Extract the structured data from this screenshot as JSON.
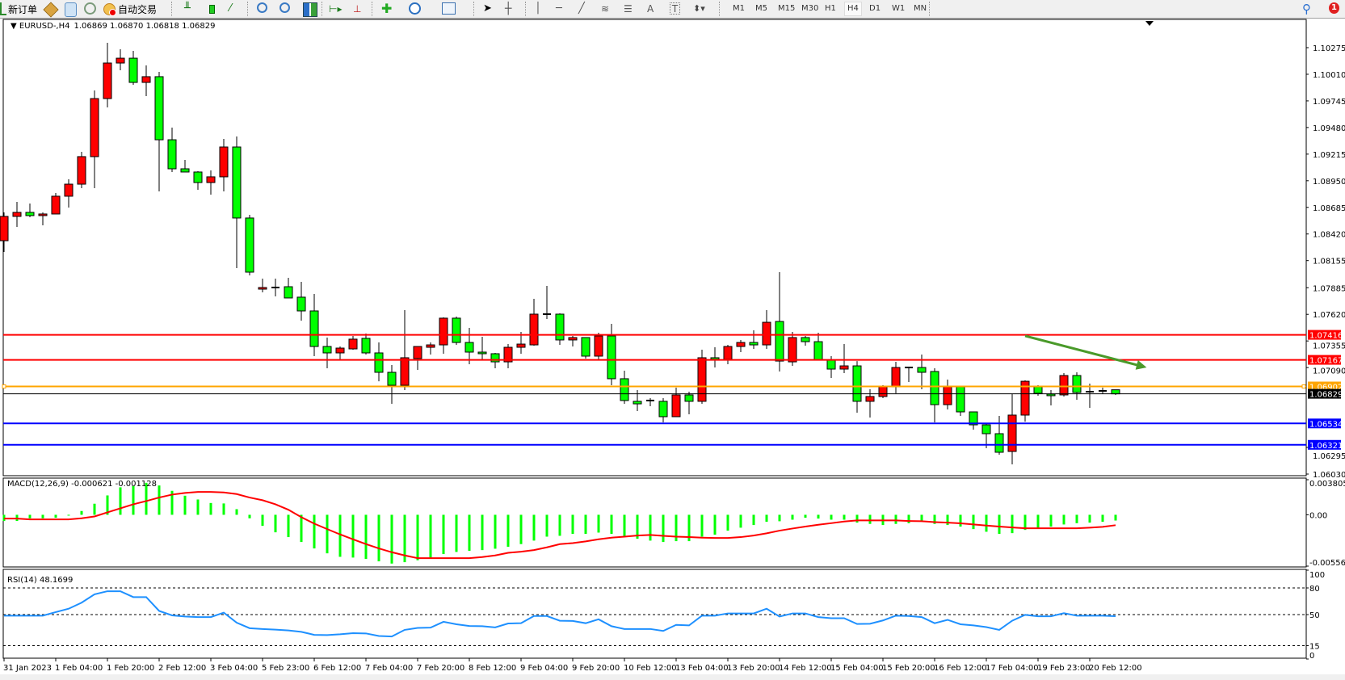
{
  "toolbar": {
    "new_order_label": "新订单",
    "auto_trading_label": "自动交易",
    "timeframes": [
      "M1",
      "M5",
      "M15",
      "M30",
      "H1",
      "H4",
      "D1",
      "W1",
      "MN"
    ],
    "active_timeframe": "H4",
    "icons": [
      "new-order-icon",
      "market-watch-icon",
      "navigator-icon",
      "signals-icon",
      "auto-trading-icon",
      "bar-chart-icon",
      "candlestick-icon",
      "line-chart-icon",
      "zoom-in-icon",
      "zoom-out-icon",
      "tile-windows-icon",
      "auto-scroll-icon",
      "chart-shift-icon",
      "indicators-icon",
      "periods-icon",
      "templates-icon",
      "cursor-icon",
      "crosshair-icon",
      "vertical-line-icon",
      "horizontal-line-icon",
      "trendline-icon",
      "fibonacci-icon",
      "fibo-fan-icon",
      "text-icon",
      "text-label-icon",
      "arrows-icon",
      "search-icon",
      "alerts-icon"
    ],
    "alert_badge": "1"
  },
  "chart": {
    "symbol_label": "EURUSD-,H4",
    "ohlc_label": "1.06869 1.06870 1.06818 1.06829",
    "colors": {
      "bull": "#ff0000",
      "bear": "#00ff00",
      "macd_hist": "#00ff00",
      "macd_signal": "#ff0000",
      "rsi": "#1e90ff",
      "arrow": "#4a9a2a"
    },
    "price_ticks": [
      "1.10275",
      "1.10010",
      "1.09745",
      "1.09480",
      "1.09215",
      "1.08950",
      "1.08685",
      "1.08420",
      "1.08155",
      "1.07885",
      "1.07620",
      "1.07355",
      "1.07090",
      "1.06295",
      "1.06030"
    ],
    "levels": [
      {
        "price": "1.07416",
        "color": "#ff0000",
        "type": "horizontal-line"
      },
      {
        "price": "1.07167",
        "color": "#ff0000",
        "type": "horizontal-line"
      },
      {
        "price": "1.06902",
        "color": "#ffa500",
        "type": "horizontal-line"
      },
      {
        "price": "1.06829",
        "color": "#000000",
        "type": "bid-line"
      },
      {
        "price": "1.06534",
        "color": "#0000ff",
        "type": "horizontal-line"
      },
      {
        "price": "1.06321",
        "color": "#0000ff",
        "type": "horizontal-line"
      }
    ],
    "arrow": {
      "from": {
        "bar": 79,
        "price": 1.07405
      },
      "to": {
        "bar": 88.4,
        "price": 1.07091
      }
    },
    "time_labels": [
      "31 Jan 2023",
      "1 Feb 04:00",
      "1 Feb 20:00",
      "2 Feb 12:00",
      "3 Feb 04:00",
      "5 Feb 23:00",
      "6 Feb 12:00",
      "7 Feb 04:00",
      "7 Feb 20:00",
      "8 Feb 12:00",
      "9 Feb 04:00",
      "9 Feb 20:00",
      "10 Feb 12:00",
      "13 Feb 04:00",
      "13 Feb 20:00",
      "14 Feb 12:00",
      "15 Feb 04:00",
      "15 Feb 20:00",
      "16 Feb 12:00",
      "17 Feb 04:00",
      "19 Feb 23:00",
      "20 Feb 12:00"
    ]
  },
  "macd": {
    "label": "MACD(12,26,9) -0.000621 -0.001128",
    "ticks": [
      "0.003805",
      "0.00",
      "-0.005569"
    ],
    "range": [
      -0.005569,
      0.003805
    ]
  },
  "rsi": {
    "label": "RSI(14) 48.1699",
    "ticks": [
      "100",
      "80",
      "50",
      "15",
      "0"
    ],
    "levels": [
      80,
      50,
      15
    ]
  },
  "chart_data": {
    "type": "candlestick",
    "ylim": [
      1.0603,
      1.10275
    ],
    "ohlc": [
      [
        1.08353,
        1.08635,
        1.08241,
        1.08595
      ],
      [
        1.08595,
        1.08739,
        1.0849,
        1.08635
      ],
      [
        1.08635,
        1.08723,
        1.08587,
        1.08603
      ],
      [
        1.08603,
        1.08635,
        1.08506,
        1.08619
      ],
      [
        1.08619,
        1.08828,
        1.08619,
        1.08796
      ],
      [
        1.08796,
        1.08964,
        1.08683,
        1.08916
      ],
      [
        1.08916,
        1.09238,
        1.08876,
        1.0919
      ],
      [
        1.0919,
        1.09849,
        1.08876,
        1.09768
      ],
      [
        1.09768,
        1.10323,
        1.0968,
        1.10122
      ],
      [
        1.10122,
        1.10259,
        1.1005,
        1.1017
      ],
      [
        1.1017,
        1.10243,
        1.09905,
        1.09929
      ],
      [
        1.09929,
        1.10098,
        1.09793,
        1.09986
      ],
      [
        1.09986,
        1.10034,
        1.08844,
        1.09358
      ],
      [
        1.09358,
        1.09479,
        1.09037,
        1.09069
      ],
      [
        1.09069,
        1.09157,
        1.09037,
        1.09037
      ],
      [
        1.09037,
        1.09045,
        1.0886,
        1.08932
      ],
      [
        1.08932,
        1.09053,
        1.08812,
        1.08989
      ],
      [
        1.08989,
        1.09366,
        1.08844,
        1.09286
      ],
      [
        1.09286,
        1.09391,
        1.0808,
        1.08579
      ],
      [
        1.08579,
        1.08611,
        1.08008,
        1.0804
      ],
      [
        1.07871,
        1.07976,
        1.07839,
        1.07887
      ],
      [
        1.07887,
        1.07976,
        1.07799,
        1.07887
      ],
      [
        1.07895,
        1.07984,
        1.07783,
        1.07783
      ],
      [
        1.07791,
        1.07943,
        1.07557,
        1.07654
      ],
      [
        1.07654,
        1.07823,
        1.07204,
        1.073
      ],
      [
        1.073,
        1.07389,
        1.07083,
        1.07236
      ],
      [
        1.07236,
        1.073,
        1.07172,
        1.07284
      ],
      [
        1.07276,
        1.07405,
        1.07268,
        1.07373
      ],
      [
        1.07381,
        1.07429,
        1.0722,
        1.07236
      ],
      [
        1.07236,
        1.0734,
        1.06954,
        1.07043
      ],
      [
        1.07043,
        1.07115,
        1.06729,
        1.06914
      ],
      [
        1.06914,
        1.07662,
        1.06866,
        1.07188
      ],
      [
        1.0718,
        1.073,
        1.07067,
        1.073
      ],
      [
        1.07292,
        1.0734,
        1.0722,
        1.07316
      ],
      [
        1.07316,
        1.0759,
        1.07228,
        1.07582
      ],
      [
        1.07582,
        1.07598,
        1.07316,
        1.0734
      ],
      [
        1.0734,
        1.07485,
        1.07123,
        1.07244
      ],
      [
        1.07244,
        1.07397,
        1.07172,
        1.07228
      ],
      [
        1.07228,
        1.07236,
        1.07083,
        1.07147
      ],
      [
        1.07147,
        1.07324,
        1.07083,
        1.07292
      ],
      [
        1.07292,
        1.07445,
        1.07228,
        1.07324
      ],
      [
        1.07316,
        1.07775,
        1.07308,
        1.07622
      ],
      [
        1.07622,
        1.07903,
        1.07574,
        1.07622
      ],
      [
        1.07622,
        1.0763,
        1.07316,
        1.07365
      ],
      [
        1.07365,
        1.07405,
        1.073,
        1.07389
      ],
      [
        1.07389,
        1.07389,
        1.0718,
        1.07204
      ],
      [
        1.07204,
        1.07437,
        1.07172,
        1.07405
      ],
      [
        1.07405,
        1.07525,
        1.06914,
        1.06979
      ],
      [
        1.06979,
        1.07059,
        1.06729,
        1.06762
      ],
      [
        1.06754,
        1.06866,
        1.06657,
        1.06729
      ],
      [
        1.06762,
        1.06786,
        1.06705,
        1.06762
      ],
      [
        1.06754,
        1.06786,
        1.06544,
        1.06601
      ],
      [
        1.06601,
        1.0689,
        1.06601,
        1.06818
      ],
      [
        1.06818,
        1.0685,
        1.06625,
        1.06754
      ],
      [
        1.06754,
        1.07268,
        1.06729,
        1.07188
      ],
      [
        1.07188,
        1.07292,
        1.07091,
        1.07172
      ],
      [
        1.07172,
        1.07316,
        1.07123,
        1.073
      ],
      [
        1.073,
        1.07365,
        1.07244,
        1.0734
      ],
      [
        1.0734,
        1.07461,
        1.07276,
        1.07316
      ],
      [
        1.07316,
        1.07662,
        1.07276,
        1.07541
      ],
      [
        1.07549,
        1.0804,
        1.07051,
        1.07155
      ],
      [
        1.07147,
        1.07445,
        1.07107,
        1.07389
      ],
      [
        1.07389,
        1.07405,
        1.07308,
        1.07348
      ],
      [
        1.07348,
        1.07437,
        1.07164,
        1.07164
      ],
      [
        1.07164,
        1.07204,
        1.06987,
        1.07075
      ],
      [
        1.07075,
        1.07324,
        1.07035,
        1.07107
      ],
      [
        1.07107,
        1.07155,
        1.06641,
        1.06754
      ],
      [
        1.06754,
        1.06874,
        1.06593,
        1.06802
      ],
      [
        1.06802,
        1.06914,
        1.06786,
        1.06898
      ],
      [
        1.06898,
        1.07147,
        1.06834,
        1.07091
      ],
      [
        1.07091,
        1.07099,
        1.06946,
        1.07091
      ],
      [
        1.07091,
        1.0722,
        1.06874,
        1.07043
      ],
      [
        1.07051,
        1.07083,
        1.06544,
        1.06721
      ],
      [
        1.06721,
        1.06971,
        1.06673,
        1.06898
      ],
      [
        1.06898,
        1.06898,
        1.06609,
        1.06649
      ],
      [
        1.06649,
        1.06649,
        1.06472,
        1.0652
      ],
      [
        1.0652,
        1.06528,
        1.06287,
        1.06432
      ],
      [
        1.06432,
        1.06609,
        1.06223,
        1.06247
      ],
      [
        1.06255,
        1.06826,
        1.06126,
        1.06617
      ],
      [
        1.06617,
        1.06963,
        1.06552,
        1.06954
      ],
      [
        1.06898,
        1.06914,
        1.0681,
        1.06834
      ],
      [
        1.06826,
        1.06866,
        1.06713,
        1.0681
      ],
      [
        1.06818,
        1.07035,
        1.06802,
        1.07011
      ],
      [
        1.07011,
        1.07043,
        1.0677,
        1.06842
      ],
      [
        1.0685,
        1.0693,
        1.06689,
        1.0685
      ],
      [
        1.06858,
        1.0689,
        1.06826,
        1.06858
      ],
      [
        1.06869,
        1.0687,
        1.06818,
        1.06829
      ]
    ],
    "macd_hist": [
      -0.00067,
      -0.00067,
      -0.00038,
      -0.00038,
      -0.00032,
      -9e-05,
      0.00041,
      0.0012,
      0.0021,
      0.00298,
      0.00312,
      0.00347,
      0.00318,
      0.0026,
      0.00207,
      0.00166,
      0.00128,
      0.00123,
      0.00061,
      -0.00038,
      -0.0012,
      -0.0019,
      -0.00242,
      -0.00295,
      -0.00365,
      -0.00418,
      -0.00456,
      -0.00464,
      -0.00479,
      -0.00505,
      -0.00529,
      -0.00514,
      -0.00493,
      -0.00464,
      -0.00426,
      -0.00403,
      -0.00391,
      -0.00383,
      -0.00368,
      -0.00347,
      -0.00318,
      -0.0028,
      -0.00237,
      -0.00228,
      -0.00207,
      -0.00207,
      -0.00193,
      -0.00207,
      -0.00237,
      -0.0026,
      -0.0028,
      -0.00295,
      -0.00286,
      -0.00286,
      -0.00237,
      -0.00216,
      -0.00172,
      -0.0014,
      -0.00111,
      -0.00076,
      -0.0007,
      -0.00053,
      -0.00032,
      -0.00041,
      -0.00053,
      -0.00053,
      -0.00085,
      -0.00099,
      -0.00111,
      -0.00099,
      -0.00091,
      -0.0007,
      -0.00099,
      -0.00111,
      -0.00128,
      -0.00155,
      -0.00184,
      -0.00207,
      -0.00199,
      -0.00164,
      -0.00143,
      -0.00128,
      -0.00105,
      -0.00091,
      -0.00085,
      -0.00076,
      -0.000621
    ],
    "macd_signal": [
      -0.00041,
      -0.00041,
      -0.0005,
      -0.0005,
      -0.0005,
      -0.0005,
      -0.00038,
      -0.00018,
      0.00026,
      0.0007,
      0.00114,
      0.00149,
      0.00187,
      0.00219,
      0.00237,
      0.00248,
      0.00248,
      0.00242,
      0.00225,
      0.00187,
      0.00158,
      0.00114,
      0.00055,
      -0.00026,
      -0.00096,
      -0.00155,
      -0.00213,
      -0.00266,
      -0.00318,
      -0.00365,
      -0.00406,
      -0.00441,
      -0.0047,
      -0.0047,
      -0.0047,
      -0.0047,
      -0.0047,
      -0.00458,
      -0.00441,
      -0.00412,
      -0.004,
      -0.00383,
      -0.00353,
      -0.00318,
      -0.00307,
      -0.00289,
      -0.00266,
      -0.00248,
      -0.00237,
      -0.00225,
      -0.00219,
      -0.00228,
      -0.00237,
      -0.00242,
      -0.00248,
      -0.00251,
      -0.00251,
      -0.00242,
      -0.00225,
      -0.00201,
      -0.00172,
      -0.00149,
      -0.00128,
      -0.00108,
      -0.00091,
      -0.00073,
      -0.00061,
      -0.00061,
      -0.00061,
      -0.00061,
      -0.00067,
      -0.0007,
      -0.00079,
      -0.00085,
      -0.00093,
      -0.00105,
      -0.00117,
      -0.00128,
      -0.00137,
      -0.00146,
      -0.00146,
      -0.00146,
      -0.00146,
      -0.00146,
      -0.0014,
      -0.00131,
      -0.001128
    ],
    "rsi": [
      48.8,
      48.8,
      48.8,
      48.8,
      52.8,
      56.6,
      63.4,
      72.8,
      76.3,
      76.3,
      69.7,
      69.7,
      54.1,
      49.1,
      47.8,
      47.2,
      47.2,
      52.2,
      40.9,
      34.7,
      33.8,
      33.1,
      32.2,
      30.6,
      27.2,
      26.9,
      27.8,
      29.1,
      28.8,
      25.9,
      25.3,
      32.8,
      35.0,
      35.3,
      41.9,
      39.1,
      37.2,
      36.9,
      35.6,
      40.0,
      40.3,
      48.4,
      48.4,
      43.1,
      42.8,
      40.3,
      44.7,
      36.9,
      33.8,
      33.8,
      33.8,
      31.6,
      38.4,
      37.8,
      48.8,
      48.8,
      51.3,
      51.3,
      51.3,
      56.6,
      47.8,
      51.3,
      51.3,
      47.2,
      45.9,
      45.9,
      39.4,
      39.7,
      43.4,
      48.8,
      48.4,
      47.2,
      40.3,
      44.1,
      39.1,
      37.8,
      35.9,
      32.8,
      43.1,
      49.7,
      48.1,
      48.1,
      51.6,
      48.8,
      48.8,
      48.8,
      48.1699
    ]
  }
}
